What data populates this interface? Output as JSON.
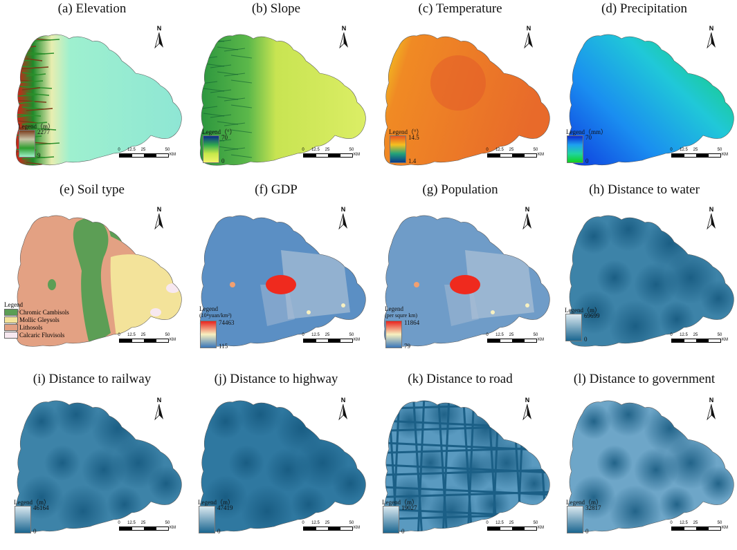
{
  "figure": {
    "panels": [
      {
        "id": "a",
        "title": "(a) Elevation",
        "legend_title": "Legend（m）",
        "legend_subtitle": "",
        "max": "2277",
        "min": "9",
        "colors": [
          "#7a3f1f",
          "#c8c2a6",
          "#2f9e2f",
          "#9ef0c8"
        ],
        "fill": "#8ee6d0",
        "style": "elevation"
      },
      {
        "id": "b",
        "title": "(b) Slope",
        "legend_title": "Legend（°）",
        "legend_subtitle": "",
        "max": "70",
        "min": "0",
        "colors": [
          "#0b2a8a",
          "#2fa84f",
          "#c7e84a",
          "#f2f56a"
        ],
        "fill": "#d4ec5e",
        "style": "slope"
      },
      {
        "id": "c",
        "title": "(c) Temperature",
        "legend_title": "Legend（°）",
        "legend_subtitle": "",
        "max": "14.5",
        "min": "1.4",
        "colors": [
          "#e85520",
          "#f5c020",
          "#23a37a",
          "#0a3a8a"
        ],
        "fill": "#e8722a",
        "style": "temperature"
      },
      {
        "id": "d",
        "title": "(d) Precipitation",
        "legend_title": "Legend（mm）",
        "legend_subtitle": "",
        "max": "70",
        "min": "0",
        "colors": [
          "#0a2ad0",
          "#1ea0f0",
          "#20d4a0",
          "#10d020"
        ],
        "fill": "#1fb8e0",
        "style": "precipitation"
      },
      {
        "id": "e",
        "title": "(e) Soil type",
        "legend_title": "",
        "legend_subtitle": "",
        "max": "",
        "min": "",
        "colors": [],
        "fill": "#e3a183",
        "style": "soil"
      },
      {
        "id": "f",
        "title": "(f) GDP",
        "legend_title": "Legend",
        "legend_subtitle": "(10⁴yuan/km²)",
        "max": "74463",
        "min": "115",
        "colors": [
          "#e8231e",
          "#f7f0c0",
          "#3a76b8"
        ],
        "fill": "#5b8fc4",
        "style": "gdp"
      },
      {
        "id": "g",
        "title": "(g) Population",
        "legend_title": "Legend",
        "legend_subtitle": "(per squre km)",
        "max": "11864",
        "min": "79",
        "colors": [
          "#e8231e",
          "#f7f0c0",
          "#3a76b8"
        ],
        "fill": "#6f9cc8",
        "style": "population"
      },
      {
        "id": "h",
        "title": "(h)  Distance to water",
        "legend_title": "Legend（m）",
        "legend_subtitle": "",
        "max": "69699",
        "min": "0",
        "colors": [
          "#dbe9f0",
          "#1b6690"
        ],
        "fill": "#3d83a8",
        "style": "distance"
      },
      {
        "id": "i",
        "title": "(i)  Distance to railway",
        "legend_title": "Legend（m）",
        "legend_subtitle": "",
        "max": "46164",
        "min": "0",
        "colors": [
          "#dbe9f0",
          "#1b6690"
        ],
        "fill": "#3d83a8",
        "style": "distance"
      },
      {
        "id": "j",
        "title": "(j)  Distance to highway",
        "legend_title": "Legend（m）",
        "legend_subtitle": "",
        "max": "47419",
        "min": "0",
        "colors": [
          "#dbe9f0",
          "#1b6690"
        ],
        "fill": "#2f78a0",
        "style": "distance"
      },
      {
        "id": "k",
        "title": "(k)  Distance to road",
        "legend_title": "Legend（m）",
        "legend_subtitle": "",
        "max": "19027",
        "min": "0",
        "colors": [
          "#dbe9f0",
          "#1b6690"
        ],
        "fill": "#5a9ac0",
        "style": "roads"
      },
      {
        "id": "l",
        "title": "(l)  Distance to government",
        "legend_title": "Legend（m）",
        "legend_subtitle": "",
        "max": "32817",
        "min": "0",
        "colors": [
          "#dbe9f0",
          "#1b6690"
        ],
        "fill": "#6ea6c8",
        "style": "distance"
      }
    ],
    "north_label": "N",
    "scale": {
      "labels": [
        "0",
        "12.5",
        "25",
        "50"
      ],
      "unit": "KM"
    },
    "soil_legend": {
      "title": "Legend",
      "classes": [
        {
          "name": "Chromic Cambisols",
          "color": "#5c9e55"
        },
        {
          "name": "Mollic Gleysols",
          "color": "#f3e39a"
        },
        {
          "name": "Lithosols",
          "color": "#e3a183"
        },
        {
          "name": "Calcaric Fluvisols",
          "color": "#f7e8f0"
        }
      ]
    }
  }
}
